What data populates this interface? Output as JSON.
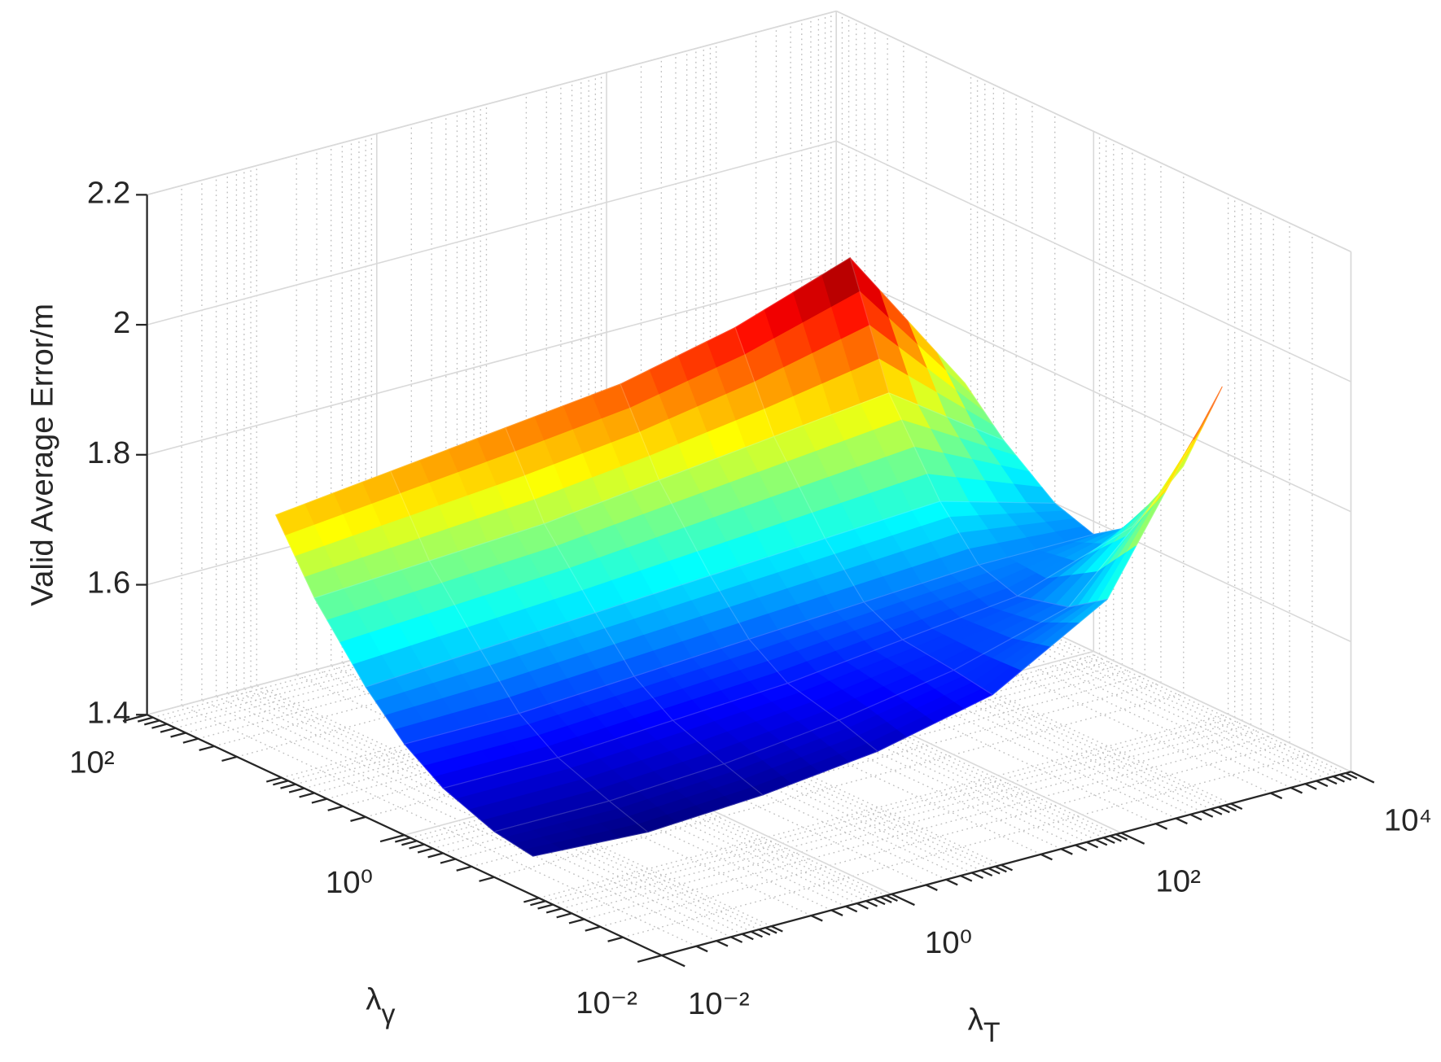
{
  "chart_data": {
    "type": "surface",
    "zlabel": "Valid Average Error/m",
    "xlabel": {
      "symbol": "λ",
      "subscript": "T"
    },
    "ylabel": {
      "symbol": "λ",
      "subscript": "γ"
    },
    "x": [
      0.01,
      0.1,
      1,
      10,
      100,
      1000,
      10000
    ],
    "y": [
      0.1,
      0.2,
      0.5,
      1,
      2,
      5,
      10
    ],
    "z": [
      [
        1.46,
        1.45,
        1.46,
        1.48,
        1.52,
        1.62,
        1.9
      ],
      [
        1.47,
        1.47,
        1.48,
        1.5,
        1.53,
        1.58,
        1.75
      ],
      [
        1.5,
        1.5,
        1.51,
        1.52,
        1.54,
        1.56,
        1.62
      ],
      [
        1.54,
        1.54,
        1.55,
        1.56,
        1.57,
        1.58,
        1.58
      ],
      [
        1.6,
        1.61,
        1.62,
        1.63,
        1.64,
        1.65,
        1.6
      ],
      [
        1.7,
        1.71,
        1.72,
        1.74,
        1.76,
        1.78,
        1.66
      ],
      [
        1.8,
        1.82,
        1.84,
        1.86,
        1.9,
        1.96,
        1.72
      ]
    ],
    "xlim": [
      0.01,
      10000
    ],
    "ylim": [
      0.01,
      100
    ],
    "zlim": [
      1.4,
      2.2
    ],
    "xscale": "log",
    "yscale": "log",
    "xticks": [
      {
        "value": 0.01,
        "label": "10⁻²"
      },
      {
        "value": 1,
        "label": "10⁰"
      },
      {
        "value": 100,
        "label": "10²"
      },
      {
        "value": 10000,
        "label": "10⁴"
      }
    ],
    "yticks": [
      {
        "value": 0.01,
        "label": "10⁻²"
      },
      {
        "value": 1,
        "label": "10⁰"
      },
      {
        "value": 100,
        "label": "10²"
      }
    ],
    "zticks": [
      1.4,
      1.6,
      1.8,
      2,
      2.2
    ],
    "colormap": "jet",
    "grid": true
  }
}
